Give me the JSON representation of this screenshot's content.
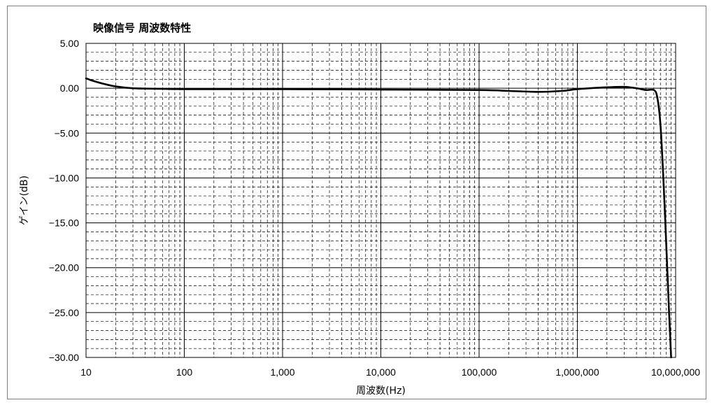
{
  "chart_data": {
    "type": "line",
    "title": "映像信号 周波数特性",
    "xlabel": "周波数(Hz)",
    "ylabel": "ゲイン(dB)",
    "x_scale": "log",
    "xlim": [
      10,
      10000000
    ],
    "ylim": [
      -30,
      5
    ],
    "x_ticks": [
      {
        "value": 10,
        "label": "10"
      },
      {
        "value": 100,
        "label": "100"
      },
      {
        "value": 1000,
        "label": "1,000"
      },
      {
        "value": 10000,
        "label": "10,000"
      },
      {
        "value": 100000,
        "label": "100,000"
      },
      {
        "value": 1000000,
        "label": "1,000,000"
      },
      {
        "value": 10000000,
        "label": "10,000,000"
      }
    ],
    "y_ticks": [
      {
        "value": 5,
        "label": "5.00"
      },
      {
        "value": 0,
        "label": "0.00"
      },
      {
        "value": -5,
        "label": "−5.00"
      },
      {
        "value": -10,
        "label": "−10.00"
      },
      {
        "value": -15,
        "label": "−15.00"
      },
      {
        "value": -20,
        "label": "−20.00"
      },
      {
        "value": -25,
        "label": "−25.00"
      },
      {
        "value": -30,
        "label": "−30.00"
      }
    ],
    "grid": {
      "major": "solid",
      "minor": "dashed"
    },
    "legend": "none",
    "series": [
      {
        "color": "#000000",
        "x": [
          10,
          12,
          15,
          20,
          30,
          50,
          100,
          1000,
          10000,
          100000,
          200000,
          400000,
          700000,
          1000000,
          2000000,
          3000000,
          4000000,
          5000000,
          6000000,
          6500000,
          7000000,
          7500000,
          8000000,
          8500000,
          9000000
        ],
        "y": [
          1.1,
          0.8,
          0.5,
          0.2,
          0.0,
          -0.05,
          -0.1,
          -0.1,
          -0.15,
          -0.2,
          -0.3,
          -0.4,
          -0.3,
          -0.1,
          0.1,
          0.15,
          0.0,
          -0.2,
          -0.2,
          -1.0,
          -4.0,
          -10.0,
          -17.0,
          -24.0,
          -30.0
        ]
      }
    ]
  }
}
